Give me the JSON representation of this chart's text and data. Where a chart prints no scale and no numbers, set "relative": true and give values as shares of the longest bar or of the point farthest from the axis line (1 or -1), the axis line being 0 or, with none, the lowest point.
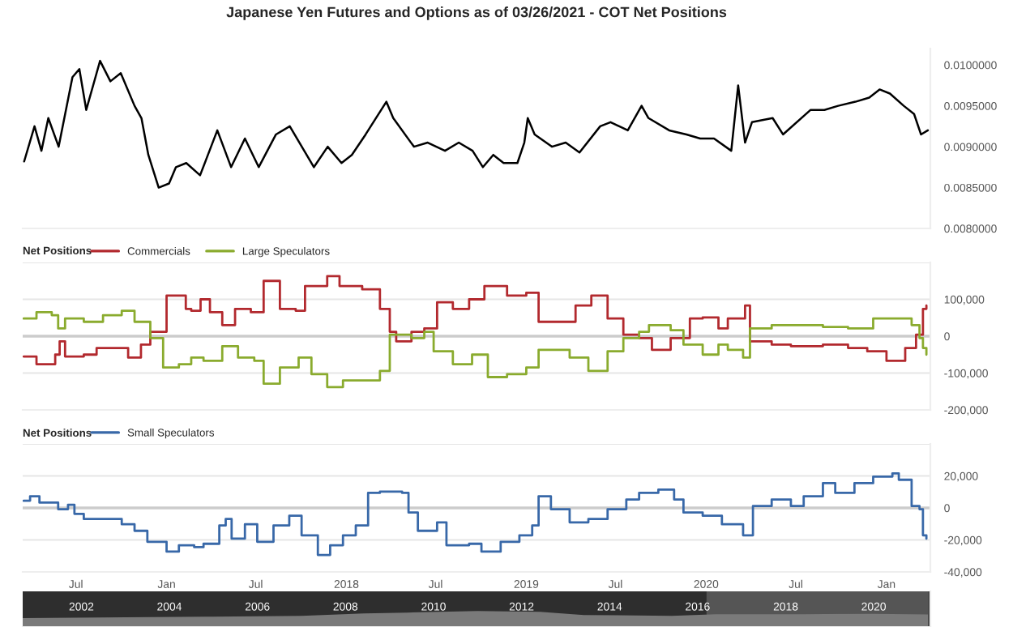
{
  "chart_data": [
    {
      "type": "line",
      "title": "Japanese Yen Futures and Options as of 03/26/2021 - COT Net Positions",
      "tick_labels": "y",
      "grid": false,
      "xlim": [
        "2016-03-15",
        "2021-03-31"
      ],
      "ylim": [
        0.008,
        0.0102
      ],
      "yticks": [
        {
          "value": 0.008,
          "label": "0.0080000"
        },
        {
          "value": 0.0085,
          "label": "0.0085000"
        },
        {
          "value": 0.009,
          "label": "0.0090000"
        },
        {
          "value": 0.0095,
          "label": "0.0095000"
        },
        {
          "value": 0.01,
          "label": "0.0100000"
        }
      ],
      "series": [
        {
          "color": "#000000",
          "x": [
            "2016-03-18",
            "2016-04-08",
            "2016-04-22",
            "2016-05-06",
            "2016-05-27",
            "2016-06-24",
            "2016-07-08",
            "2016-07-22",
            "2016-08-12",
            "2016-08-19",
            "2016-09-09",
            "2016-09-30",
            "2016-10-28",
            "2016-11-11",
            "2016-11-25",
            "2016-12-16",
            "2017-01-06",
            "2017-01-20",
            "2017-02-10",
            "2017-03-10",
            "2017-04-14",
            "2017-05-12",
            "2017-06-09",
            "2017-07-07",
            "2017-08-11",
            "2017-09-08",
            "2017-10-27",
            "2017-11-24",
            "2017-12-22",
            "2018-01-12",
            "2018-02-09",
            "2018-03-23",
            "2018-04-06",
            "2018-05-18",
            "2018-06-15",
            "2018-07-20",
            "2018-08-17",
            "2018-09-14",
            "2018-10-05",
            "2018-10-26",
            "2018-11-16",
            "2018-12-14",
            "2018-12-28",
            "2019-01-04",
            "2019-01-18",
            "2019-02-22",
            "2019-03-22",
            "2019-04-19",
            "2019-05-31",
            "2019-06-21",
            "2019-07-26",
            "2019-08-23",
            "2019-09-06",
            "2019-10-18",
            "2019-11-22",
            "2019-12-20",
            "2020-01-17",
            "2020-02-21",
            "2020-03-06",
            "2020-03-20",
            "2020-04-03",
            "2020-05-15",
            "2020-06-05",
            "2020-07-31",
            "2020-08-28",
            "2020-09-25",
            "2020-10-30",
            "2020-11-27",
            "2020-12-18",
            "2021-01-08",
            "2021-02-05",
            "2021-02-26",
            "2021-03-12",
            "2021-03-26"
          ],
          "values": [
            0.00882,
            0.00925,
            0.00895,
            0.00935,
            0.009,
            0.00985,
            0.00995,
            0.00945,
            0.0099,
            0.01005,
            0.0098,
            0.0099,
            0.0095,
            0.00935,
            0.0089,
            0.0085,
            0.00855,
            0.00875,
            0.0088,
            0.00865,
            0.0092,
            0.00875,
            0.0091,
            0.00875,
            0.00915,
            0.00925,
            0.00875,
            0.009,
            0.0088,
            0.0089,
            0.00915,
            0.00955,
            0.00935,
            0.009,
            0.00905,
            0.00895,
            0.00905,
            0.00895,
            0.00875,
            0.0089,
            0.0088,
            0.0088,
            0.00905,
            0.00935,
            0.00915,
            0.009,
            0.00905,
            0.00893,
            0.00925,
            0.0093,
            0.0092,
            0.0095,
            0.00935,
            0.0092,
            0.00915,
            0.0091,
            0.0091,
            0.00895,
            0.00975,
            0.00905,
            0.0093,
            0.00935,
            0.00915,
            0.00945,
            0.00945,
            0.0095,
            0.00955,
            0.0096,
            0.0097,
            0.00965,
            0.0095,
            0.0094,
            0.00915,
            0.0092
          ]
        }
      ]
    },
    {
      "type": "step",
      "legend_title": "Net Positions",
      "legend": "top left",
      "tick_labels": "y",
      "grid": "y",
      "xlim": [
        "2016-03-15",
        "2021-03-31"
      ],
      "ylim": [
        -200000,
        200000
      ],
      "yticks": [
        {
          "value": -200000,
          "label": "-200,000"
        },
        {
          "value": -100000,
          "label": "-100,000"
        },
        {
          "value": 0,
          "label": "0"
        },
        {
          "value": 100000,
          "label": "100,000"
        },
        {
          "value": 200000,
          "label": null
        }
      ],
      "ref_lines": [
        {
          "axis": "y",
          "value": 0,
          "color": "#cccccc"
        }
      ],
      "series": [
        {
          "name": "Commercials",
          "color": "#b2292e",
          "x": [
            "2016-03-17",
            "2016-04-12",
            "2016-05-20",
            "2016-05-29",
            "2016-06-09",
            "2016-07-17",
            "2016-08-12",
            "2016-10-15",
            "2016-11-10",
            "2016-11-29",
            "2017-01-01",
            "2017-01-20",
            "2017-02-09",
            "2017-02-20",
            "2017-03-11",
            "2017-03-30",
            "2017-04-24",
            "2017-05-20",
            "2017-06-21",
            "2017-07-17",
            "2017-08-19",
            "2017-09-20",
            "2017-10-09",
            "2017-11-23",
            "2017-12-18",
            "2018-02-02",
            "2018-03-10",
            "2018-03-30",
            "2018-04-12",
            "2018-05-13",
            "2018-06-08",
            "2018-07-04",
            "2018-08-05",
            "2018-09-07",
            "2018-10-08",
            "2018-11-23",
            "2019-01-01",
            "2019-01-26",
            "2019-02-20",
            "2019-04-11",
            "2019-05-13",
            "2019-06-15",
            "2019-07-17",
            "2019-08-18",
            "2019-09-13",
            "2019-10-21",
            "2019-11-29",
            "2019-12-25",
            "2020-01-26",
            "2020-02-14",
            "2020-03-10",
            "2020-03-20",
            "2020-03-30",
            "2020-05-13",
            "2020-06-21",
            "2020-08-25",
            "2020-10-15",
            "2020-11-23",
            "2021-01-01",
            "2021-02-08",
            "2021-03-02",
            "2021-03-16",
            "2021-03-23"
          ],
          "values": [
            -55000,
            -76000,
            -50000,
            -14000,
            -55000,
            -50000,
            -32000,
            -58000,
            -23000,
            12000,
            110000,
            110000,
            74000,
            69000,
            100000,
            65000,
            30000,
            74000,
            65000,
            150000,
            74000,
            69000,
            136000,
            163000,
            136000,
            127000,
            74000,
            12000,
            -14000,
            12000,
            21000,
            92000,
            74000,
            100000,
            136000,
            110000,
            118000,
            39000,
            39000,
            83000,
            110000,
            48000,
            4000,
            -5000,
            -37000,
            -5000,
            48000,
            51000,
            21000,
            48000,
            48000,
            83000,
            -14000,
            -23000,
            -27000,
            -23000,
            -32000,
            -41000,
            -67000,
            -32000,
            4000,
            74000,
            83000
          ]
        },
        {
          "name": "Large Speculators",
          "color": "#8aab2e",
          "x": [
            "2016-03-17",
            "2016-04-12",
            "2016-05-13",
            "2016-05-26",
            "2016-06-09",
            "2016-07-17",
            "2016-08-25",
            "2016-10-02",
            "2016-10-28",
            "2016-11-29",
            "2016-12-25",
            "2017-01-26",
            "2017-02-20",
            "2017-03-17",
            "2017-04-24",
            "2017-05-26",
            "2017-06-28",
            "2017-07-17",
            "2017-08-19",
            "2017-09-26",
            "2017-10-22",
            "2017-11-23",
            "2017-12-25",
            "2018-02-14",
            "2018-03-10",
            "2018-03-30",
            "2018-05-13",
            "2018-06-08",
            "2018-06-27",
            "2018-08-05",
            "2018-09-13",
            "2018-10-15",
            "2018-11-23",
            "2019-01-01",
            "2019-01-26",
            "2019-03-30",
            "2019-05-07",
            "2019-06-15",
            "2019-07-17",
            "2019-08-18",
            "2019-09-07",
            "2019-10-21",
            "2019-11-16",
            "2019-12-25",
            "2020-01-26",
            "2020-02-14",
            "2020-03-16",
            "2020-03-30",
            "2020-05-13",
            "2020-07-04",
            "2020-08-25",
            "2020-10-15",
            "2020-12-05",
            "2021-01-13",
            "2021-02-21",
            "2021-03-09",
            "2021-03-16",
            "2021-03-23"
          ],
          "values": [
            48000,
            65000,
            57000,
            21000,
            48000,
            39000,
            57000,
            69000,
            39000,
            -5000,
            -85000,
            -76000,
            -58000,
            -67000,
            -27000,
            -58000,
            -67000,
            -129000,
            -85000,
            -58000,
            -103000,
            -138000,
            -120000,
            -120000,
            -94000,
            4000,
            -5000,
            12000,
            -41000,
            -76000,
            -50000,
            -111000,
            -103000,
            -85000,
            -37000,
            -58000,
            -94000,
            -41000,
            -5000,
            12000,
            30000,
            16000,
            -23000,
            -50000,
            -23000,
            -37000,
            -58000,
            21000,
            30000,
            30000,
            25000,
            21000,
            48000,
            48000,
            30000,
            -5000,
            -32000,
            -50000
          ]
        }
      ]
    },
    {
      "type": "step",
      "legend_title": "Net Positions",
      "legend": "top left",
      "grid": "y",
      "xlim": [
        "2016-03-15",
        "2021-03-31"
      ],
      "ylim": [
        -40000,
        40000
      ],
      "xticks": [
        {
          "value": "2016-07-01",
          "label": "Jul"
        },
        {
          "value": "2017-01-01",
          "label": "Jan"
        },
        {
          "value": "2017-07-01",
          "label": "Jul"
        },
        {
          "value": "2018-01-01",
          "label": "2018"
        },
        {
          "value": "2018-07-01",
          "label": "Jul"
        },
        {
          "value": "2019-01-01",
          "label": "2019"
        },
        {
          "value": "2019-07-01",
          "label": "Jul"
        },
        {
          "value": "2020-01-01",
          "label": "2020"
        },
        {
          "value": "2020-07-01",
          "label": "Jul"
        },
        {
          "value": "2021-01-01",
          "label": "Jan"
        }
      ],
      "yticks": [
        {
          "value": -40000,
          "label": "-40,000"
        },
        {
          "value": -20000,
          "label": "-20,000"
        },
        {
          "value": 0,
          "label": "0"
        },
        {
          "value": 20000,
          "label": "20,000"
        },
        {
          "value": 40000,
          "label": null
        }
      ],
      "ref_lines": [
        {
          "axis": "y",
          "value": 0,
          "color": "#cccccc"
        }
      ],
      "series": [
        {
          "name": "Small Speculators",
          "color": "#3868a8",
          "x": [
            "2016-03-17",
            "2016-03-30",
            "2016-04-18",
            "2016-05-26",
            "2016-06-15",
            "2016-06-28",
            "2016-07-17",
            "2016-08-25",
            "2016-10-02",
            "2016-10-28",
            "2016-11-23",
            "2017-01-01",
            "2017-01-26",
            "2017-02-26",
            "2017-03-17",
            "2017-04-18",
            "2017-05-01",
            "2017-05-13",
            "2017-06-09",
            "2017-07-04",
            "2017-08-06",
            "2017-09-07",
            "2017-10-02",
            "2017-11-04",
            "2017-11-29",
            "2017-12-25",
            "2018-01-20",
            "2018-02-14",
            "2018-03-10",
            "2018-04-24",
            "2018-05-07",
            "2018-05-26",
            "2018-07-04",
            "2018-07-23",
            "2018-09-07",
            "2018-10-02",
            "2018-11-10",
            "2018-12-18",
            "2019-01-13",
            "2019-01-26",
            "2019-02-20",
            "2019-03-30",
            "2019-05-07",
            "2019-06-15",
            "2019-07-23",
            "2019-08-18",
            "2019-09-26",
            "2019-10-28",
            "2019-11-16",
            "2019-12-25",
            "2020-02-02",
            "2020-03-16",
            "2020-04-05",
            "2020-05-13",
            "2020-06-21",
            "2020-07-17",
            "2020-08-25",
            "2020-09-19",
            "2020-10-28",
            "2020-12-05",
            "2021-01-13",
            "2021-01-26",
            "2021-02-21",
            "2021-03-09",
            "2021-03-16",
            "2021-03-23"
          ],
          "values": [
            4500,
            7300,
            3300,
            -800,
            2000,
            -3700,
            -6900,
            -6900,
            -10200,
            -14300,
            -21200,
            -27300,
            -23300,
            -24500,
            -22400,
            -11000,
            -6900,
            -19200,
            -10200,
            -21200,
            -11000,
            -4900,
            -17100,
            -29400,
            -23300,
            -17100,
            -11000,
            9400,
            10200,
            9400,
            -2900,
            -14300,
            -9000,
            -23300,
            -22400,
            -27300,
            -21200,
            -17100,
            -11000,
            7300,
            -800,
            -9000,
            -6900,
            -800,
            5300,
            9400,
            11400,
            5300,
            -2900,
            -4900,
            -10200,
            -17100,
            1200,
            5300,
            1200,
            7300,
            15500,
            9400,
            15500,
            19600,
            21600,
            17600,
            1200,
            -800,
            -17100,
            -19200
          ]
        }
      ]
    },
    {
      "type": "area",
      "relative": true,
      "tick_labels": "x",
      "xlim": [
        "2000-09-01",
        "2021-04-15"
      ],
      "xticks": [
        {
          "value": "2002-01-01",
          "label": "2002"
        },
        {
          "value": "2004-01-01",
          "label": "2004"
        },
        {
          "value": "2006-01-01",
          "label": "2006"
        },
        {
          "value": "2008-01-01",
          "label": "2008"
        },
        {
          "value": "2010-01-01",
          "label": "2010"
        },
        {
          "value": "2012-01-01",
          "label": "2012"
        },
        {
          "value": "2014-01-01",
          "label": "2014"
        },
        {
          "value": "2016-01-01",
          "label": "2016"
        },
        {
          "value": "2018-01-01",
          "label": "2018"
        },
        {
          "value": "2020-01-01",
          "label": "2020"
        }
      ],
      "bands": [
        {
          "axis": "x",
          "from": "2016-03-15",
          "to": "2021-03-31",
          "color": "#555555"
        }
      ],
      "series": [
        {
          "color": "#7a7a7a",
          "x": [
            "2000-09-01",
            "2003-01-01",
            "2005-01-01",
            "2007-01-01",
            "2008-06-01",
            "2009-06-01",
            "2011-01-01",
            "2012-06-01",
            "2013-06-01",
            "2015-06-01",
            "2016-06-01",
            "2018-06-01",
            "2020-01-01",
            "2021-03-26"
          ],
          "values": [
            0.55,
            0.6,
            0.65,
            0.7,
            0.85,
            0.9,
            1.0,
            0.95,
            0.75,
            0.7,
            0.8,
            0.8,
            0.82,
            0.78
          ]
        }
      ]
    }
  ]
}
